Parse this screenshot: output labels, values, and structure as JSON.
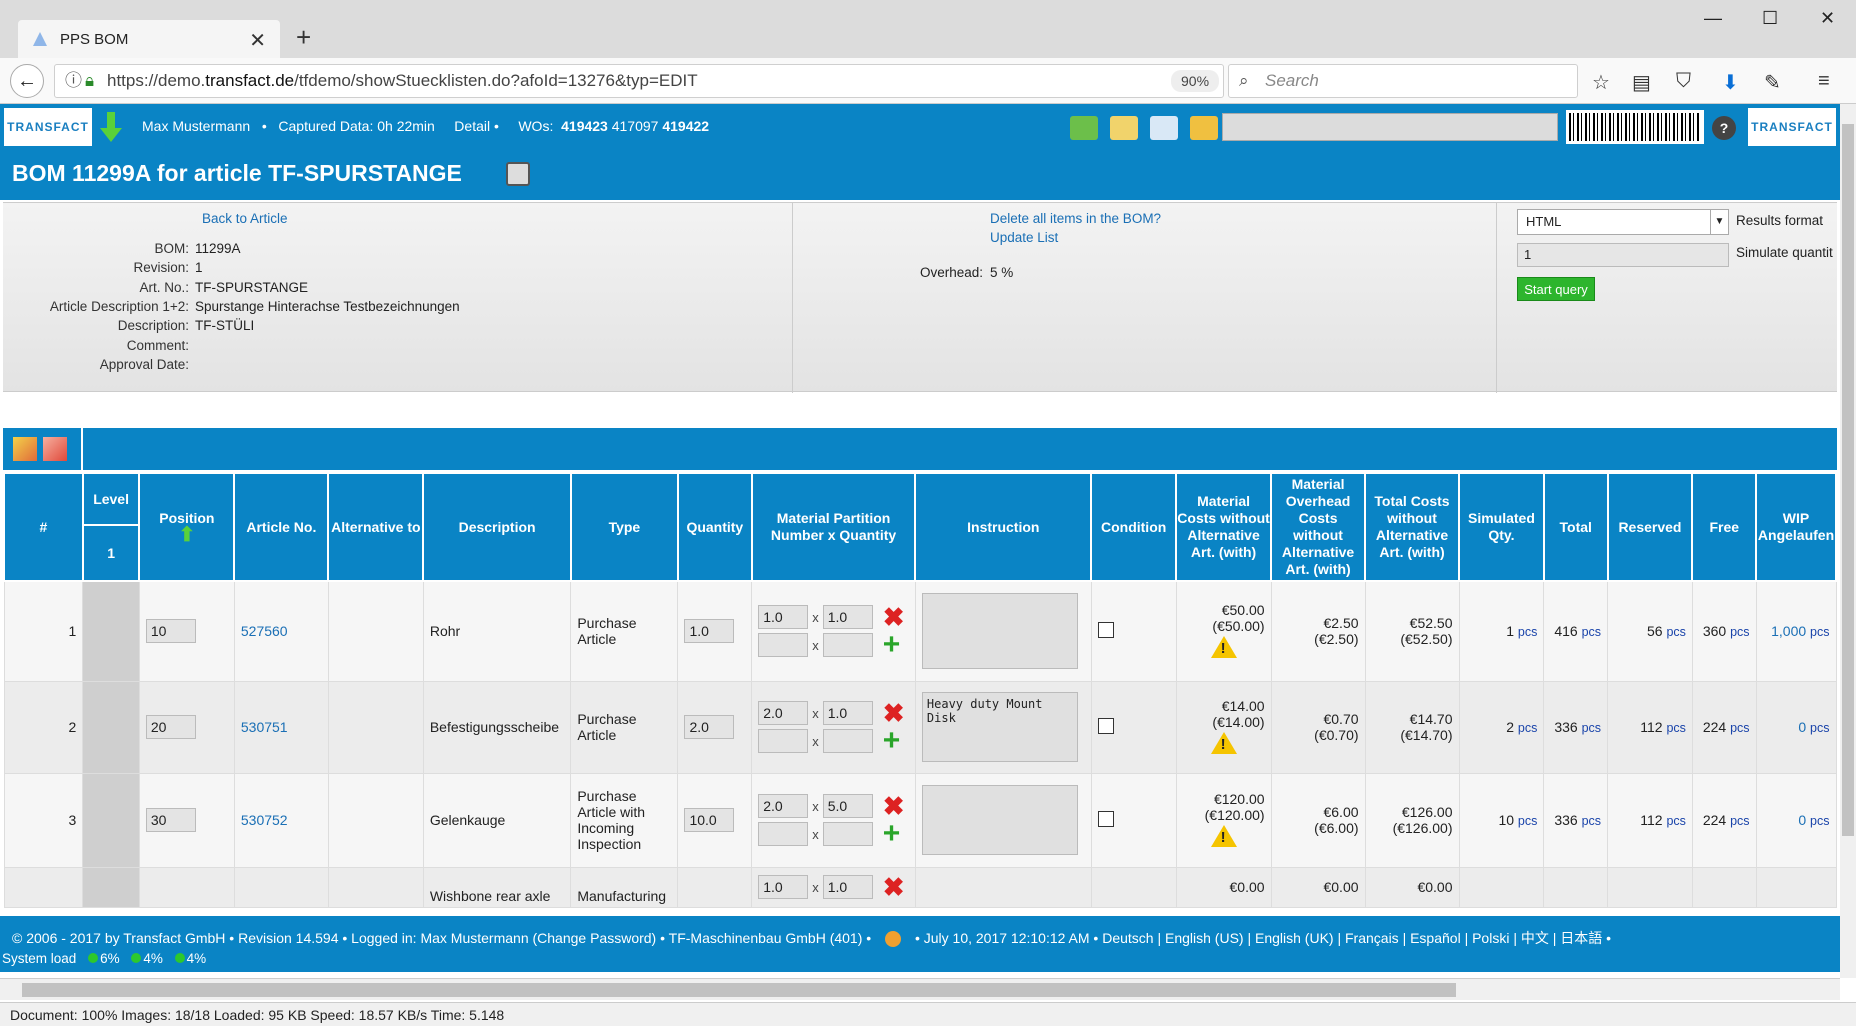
{
  "browser": {
    "tab_title": "PPS BOM",
    "url_prefix": "https://demo.",
    "url_host": "transfact.de",
    "url_path": "/tfdemo/showStuecklisten.do?afoId=13276&typ=EDIT",
    "zoom": "90%",
    "search_placeholder": "Search"
  },
  "app_header": {
    "logo": "TRANSFACT",
    "user": "Max Mustermann",
    "captured": "Captured Data: 0h 22min",
    "detail": "Detail",
    "wos_label": "WOs:",
    "wo1": "419423",
    "wo2": "417097",
    "wo3": "419422"
  },
  "title": "BOM 11299A for article TF-SPURSTANGE",
  "info": {
    "back_link": "Back to Article",
    "fields": [
      {
        "k": "BOM:",
        "v": "11299A"
      },
      {
        "k": "Revision:",
        "v": "1"
      },
      {
        "k": "Art. No.:",
        "v": "TF-SPURSTANGE"
      },
      {
        "k": "Article Description 1+2:",
        "v": "Spurstange Hinterachse Testbezeichnungen"
      },
      {
        "k": "Description:",
        "v": "TF-STÜLI"
      },
      {
        "k": "Comment:",
        "v": ""
      },
      {
        "k": "Approval Date:",
        "v": ""
      }
    ],
    "delete_link": "Delete all items in the BOM?",
    "update_link": "Update List",
    "overhead_label": "Overhead:",
    "overhead_value": "5 %",
    "results_format_value": "HTML",
    "results_format_label": "Results format",
    "simulate_value": "1",
    "simulate_label": "Simulate quantit",
    "start_query": "Start query"
  },
  "columns": {
    "num": "#",
    "level": "Level",
    "level_value": "1",
    "position": "Position",
    "article": "Article No.",
    "alt": "Alternative to",
    "desc": "Description",
    "type": "Type",
    "qty": "Quantity",
    "matpart": "Material Partition Number x Quantity",
    "instr": "Instruction",
    "cond": "Condition",
    "matcost": "Material Costs without Alternative Art. (with)",
    "ovcost": "Material Overhead Costs without Alternative Art. (with)",
    "totcost": "Total Costs without Alternative Art. (with)",
    "simqty": "Simulated Qty.",
    "total": "Total",
    "reserved": "Reserved",
    "free": "Free",
    "wip": "WIP Angelaufen"
  },
  "unit": "pcs",
  "rows": [
    {
      "n": "1",
      "pos": "10",
      "art": "527560",
      "desc": "Rohr",
      "type": "Purchase Article",
      "qty": "1.0",
      "mp1a": "1.0",
      "mp1b": "1.0",
      "instr": "",
      "mat": "€50.00",
      "mat2": "(€50.00)",
      "ov": "€2.50",
      "ov2": "(€2.50)",
      "tot": "€52.50",
      "tot2": "(€52.50)",
      "sim": "1",
      "total": "416",
      "res": "56",
      "free": "360",
      "wip": "1,000"
    },
    {
      "n": "2",
      "pos": "20",
      "art": "530751",
      "desc": "Befestigungsscheibe",
      "type": "Purchase Article",
      "qty": "2.0",
      "mp1a": "2.0",
      "mp1b": "1.0",
      "instr": "Heavy duty Mount Disk",
      "mat": "€14.00",
      "mat2": "(€14.00)",
      "ov": "€0.70",
      "ov2": "(€0.70)",
      "tot": "€14.70",
      "tot2": "(€14.70)",
      "sim": "2",
      "total": "336",
      "res": "112",
      "free": "224",
      "wip": "0"
    },
    {
      "n": "3",
      "pos": "30",
      "art": "530752",
      "desc": "Gelenkauge",
      "type": "Purchase Article with Incoming Inspection",
      "qty": "10.0",
      "mp1a": "2.0",
      "mp1b": "5.0",
      "instr": "",
      "mat": "€120.00",
      "mat2": "(€120.00)",
      "ov": "€6.00",
      "ov2": "(€6.00)",
      "tot": "€126.00",
      "tot2": "(€126.00)",
      "sim": "10",
      "total": "336",
      "res": "112",
      "free": "224",
      "wip": "0"
    }
  ],
  "partial_row": {
    "desc": "Wishbone rear axle",
    "type": "Manufacturing",
    "mp1a": "1.0",
    "mp1b": "1.0",
    "mat": "€0.00",
    "ov": "€0.00",
    "tot": "€0.00"
  },
  "footer": {
    "line1": "© 2006 - 2017 by Transfact GmbH   •   Revision  14.594   •   Logged in: Max Mustermann (Change Password)   •   TF-Maschinenbau GmbH (401)   •",
    "datetime": "•   July 10, 2017 12:10:12 AM   •   Deutsch | English (US) | English (UK) | Français | Español | Polski | 中文 | 日本語   •",
    "system_load": "System load",
    "load1": "6%",
    "load2": "4%",
    "load3": "4%"
  },
  "statusbar": "Document: 100%    Images: 18/18    Loaded: 95 KB    Speed: 18.57 KB/s    Time: 5.148",
  "colors": {
    "accent": "#0a84c5",
    "link": "#1a6fb5",
    "go": "#2db52d"
  }
}
